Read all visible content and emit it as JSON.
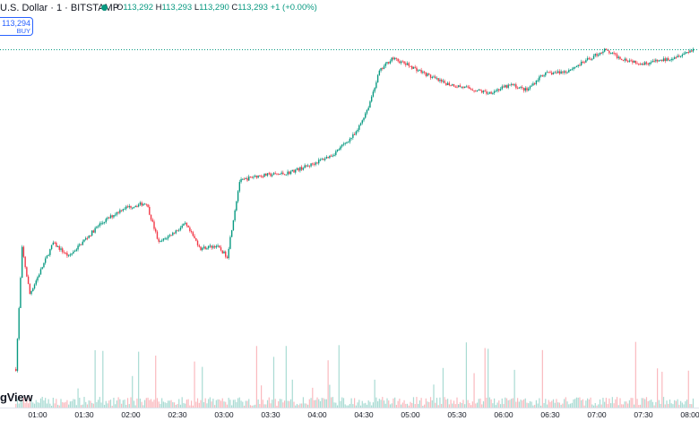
{
  "header": {
    "title": "U.S. Dollar · 1 · BITSTAMP",
    "ohlc": [
      {
        "key": "O",
        "value": "113,292"
      },
      {
        "key": "H",
        "value": "113,293"
      },
      {
        "key": "L",
        "value": "113,290"
      },
      {
        "key": "C",
        "value": "113,293"
      }
    ],
    "change": "+1 (+0.00%)"
  },
  "buy_button": {
    "price": "113,294",
    "label": "BUY"
  },
  "watermark": "gView",
  "colors": {
    "up": "#089981",
    "down": "#f23645",
    "price_line": "#089981"
  },
  "chart_data": {
    "type": "candlestick",
    "title": "",
    "x_ticks": [
      "01:00",
      "01:30",
      "02:00",
      "02:30",
      "03:00",
      "03:30",
      "04:00",
      "04:30",
      "05:00",
      "05:30",
      "06:00",
      "06:30",
      "07:00",
      "07:30",
      "08:00"
    ],
    "current_price": 113293,
    "price_trajectory": [
      {
        "time": "00:46",
        "price": 112100
      },
      {
        "time": "00:50",
        "price": 112550
      },
      {
        "time": "00:55",
        "price": 112380
      },
      {
        "time": "01:10",
        "price": 112570
      },
      {
        "time": "01:20",
        "price": 112520
      },
      {
        "time": "01:40",
        "price": 112640
      },
      {
        "time": "01:55",
        "price": 112700
      },
      {
        "time": "02:10",
        "price": 112720
      },
      {
        "time": "02:18",
        "price": 112570
      },
      {
        "time": "02:35",
        "price": 112640
      },
      {
        "time": "02:45",
        "price": 112550
      },
      {
        "time": "02:55",
        "price": 112560
      },
      {
        "time": "03:02",
        "price": 112520
      },
      {
        "time": "03:10",
        "price": 112800
      },
      {
        "time": "03:20",
        "price": 112820
      },
      {
        "time": "03:40",
        "price": 112830
      },
      {
        "time": "03:55",
        "price": 112860
      },
      {
        "time": "04:10",
        "price": 112900
      },
      {
        "time": "04:25",
        "price": 112980
      },
      {
        "time": "04:33",
        "price": 113080
      },
      {
        "time": "04:40",
        "price": 113210
      },
      {
        "time": "04:48",
        "price": 113260
      },
      {
        "time": "05:00",
        "price": 113230
      },
      {
        "time": "05:20",
        "price": 113170
      },
      {
        "time": "05:35",
        "price": 113150
      },
      {
        "time": "05:50",
        "price": 113130
      },
      {
        "time": "06:05",
        "price": 113160
      },
      {
        "time": "06:15",
        "price": 113140
      },
      {
        "time": "06:25",
        "price": 113200
      },
      {
        "time": "06:40",
        "price": 113210
      },
      {
        "time": "06:50",
        "price": 113240
      },
      {
        "time": "07:05",
        "price": 113290
      },
      {
        "time": "07:15",
        "price": 113260
      },
      {
        "time": "07:30",
        "price": 113240
      },
      {
        "time": "07:45",
        "price": 113255
      },
      {
        "time": "07:57",
        "price": 113280
      },
      {
        "time": "08:02",
        "price": 113293
      }
    ]
  }
}
